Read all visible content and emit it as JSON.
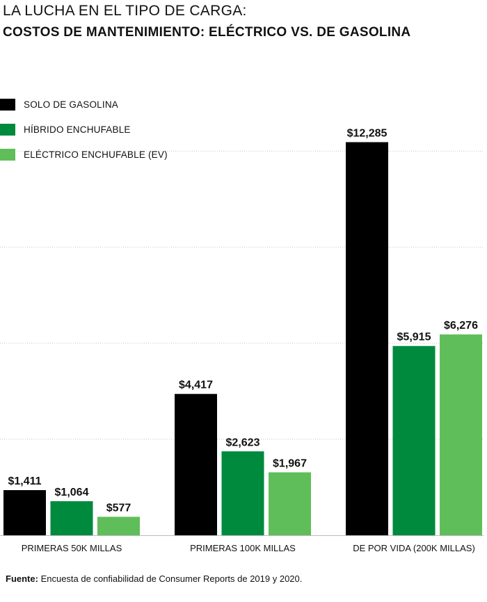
{
  "chart_data": {
    "type": "bar",
    "title": "LA LUCHA EN EL TIPO DE CARGA:",
    "subtitle": "COSTOS DE MANTENIMIENTO: ELÉCTRICO VS. DE GASOLINA",
    "categories": [
      "PRIMERAS 50K MILLAS",
      "PRIMERAS 100K MILLAS",
      "DE POR VIDA (200K MILLAS)"
    ],
    "series": [
      {
        "name": "SOLO DE GASOLINA",
        "color": "#000000",
        "values": [
          1411,
          4417,
          12285
        ],
        "labels": [
          "$1,411",
          "$4,417",
          "$12,285"
        ]
      },
      {
        "name": "HÍBRIDO ENCHUFABLE",
        "color": "#008a3e",
        "values": [
          1064,
          2623,
          5915
        ],
        "labels": [
          "$1,064",
          "$2,623",
          "$5,915"
        ]
      },
      {
        "name": "ELÉCTRICO ENCHUFABLE (EV)",
        "color": "#5fbe5a",
        "values": [
          577,
          1967,
          6276
        ],
        "labels": [
          "$577",
          "$1,967",
          "$6,276"
        ]
      }
    ],
    "ylim": [
      0,
      12600
    ],
    "grid": true,
    "legend_position": "top-left",
    "xlabel": "",
    "ylabel": ""
  },
  "source": {
    "label": "Fuente:",
    "text": " Encuesta de confiabilidad de Consumer Reports de 2019 y 2020."
  }
}
